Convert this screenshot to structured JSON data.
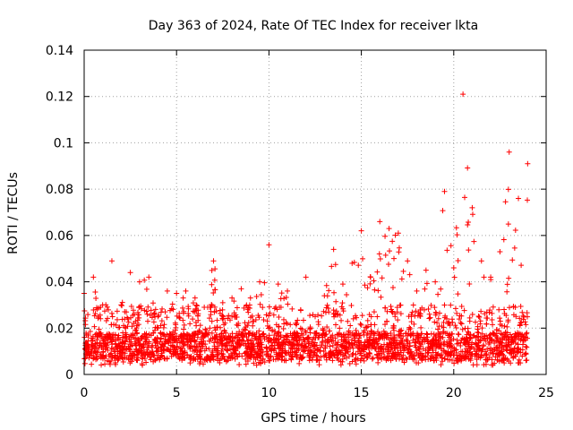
{
  "chart_data": {
    "type": "scatter",
    "title": "Day 363 of 2024, Rate Of TEC Index for receiver lkta",
    "xlabel": "GPS time / hours",
    "ylabel": "ROTI / TECUs",
    "xlim": [
      0,
      25
    ],
    "ylim": [
      0,
      0.14
    ],
    "xticks": [
      "0",
      "5",
      "10",
      "15",
      "20",
      "25"
    ],
    "yticks": [
      "0",
      "0.02",
      "0.04",
      "0.06",
      "0.08",
      "0.1",
      "0.12",
      "0.14"
    ],
    "grid": true,
    "marker": "+",
    "series_color": "#ff0000",
    "series": [
      {
        "name": "ROTI",
        "envelope_x": [
          0,
          0.5,
          1,
          1.5,
          2,
          2.5,
          3,
          3.5,
          4,
          4.5,
          5,
          5.5,
          6,
          6.5,
          7,
          7.5,
          8,
          8.5,
          9,
          9.5,
          10,
          10.5,
          11,
          11.5,
          12,
          12.5,
          13,
          13.5,
          14,
          14.5,
          15,
          15.5,
          16,
          16.5,
          17,
          17.5,
          18,
          18.5,
          19,
          19.5,
          20,
          20.5,
          21,
          21.5,
          22,
          22.5,
          23,
          23.5,
          24
        ],
        "envelope_y": [
          0.035,
          0.042,
          0.03,
          0.049,
          0.03,
          0.044,
          0.04,
          0.042,
          0.025,
          0.036,
          0.035,
          0.036,
          0.033,
          0.029,
          0.049,
          0.031,
          0.033,
          0.037,
          0.033,
          0.04,
          0.056,
          0.039,
          0.036,
          0.022,
          0.042,
          0.025,
          0.034,
          0.054,
          0.039,
          0.048,
          0.062,
          0.042,
          0.066,
          0.063,
          0.061,
          0.049,
          0.036,
          0.045,
          0.04,
          0.079,
          0.046,
          0.121,
          0.072,
          0.049,
          0.042,
          0.053,
          0.096,
          0.076,
          0.091
        ],
        "baseline": 0.012,
        "min": 0.004
      }
    ]
  }
}
